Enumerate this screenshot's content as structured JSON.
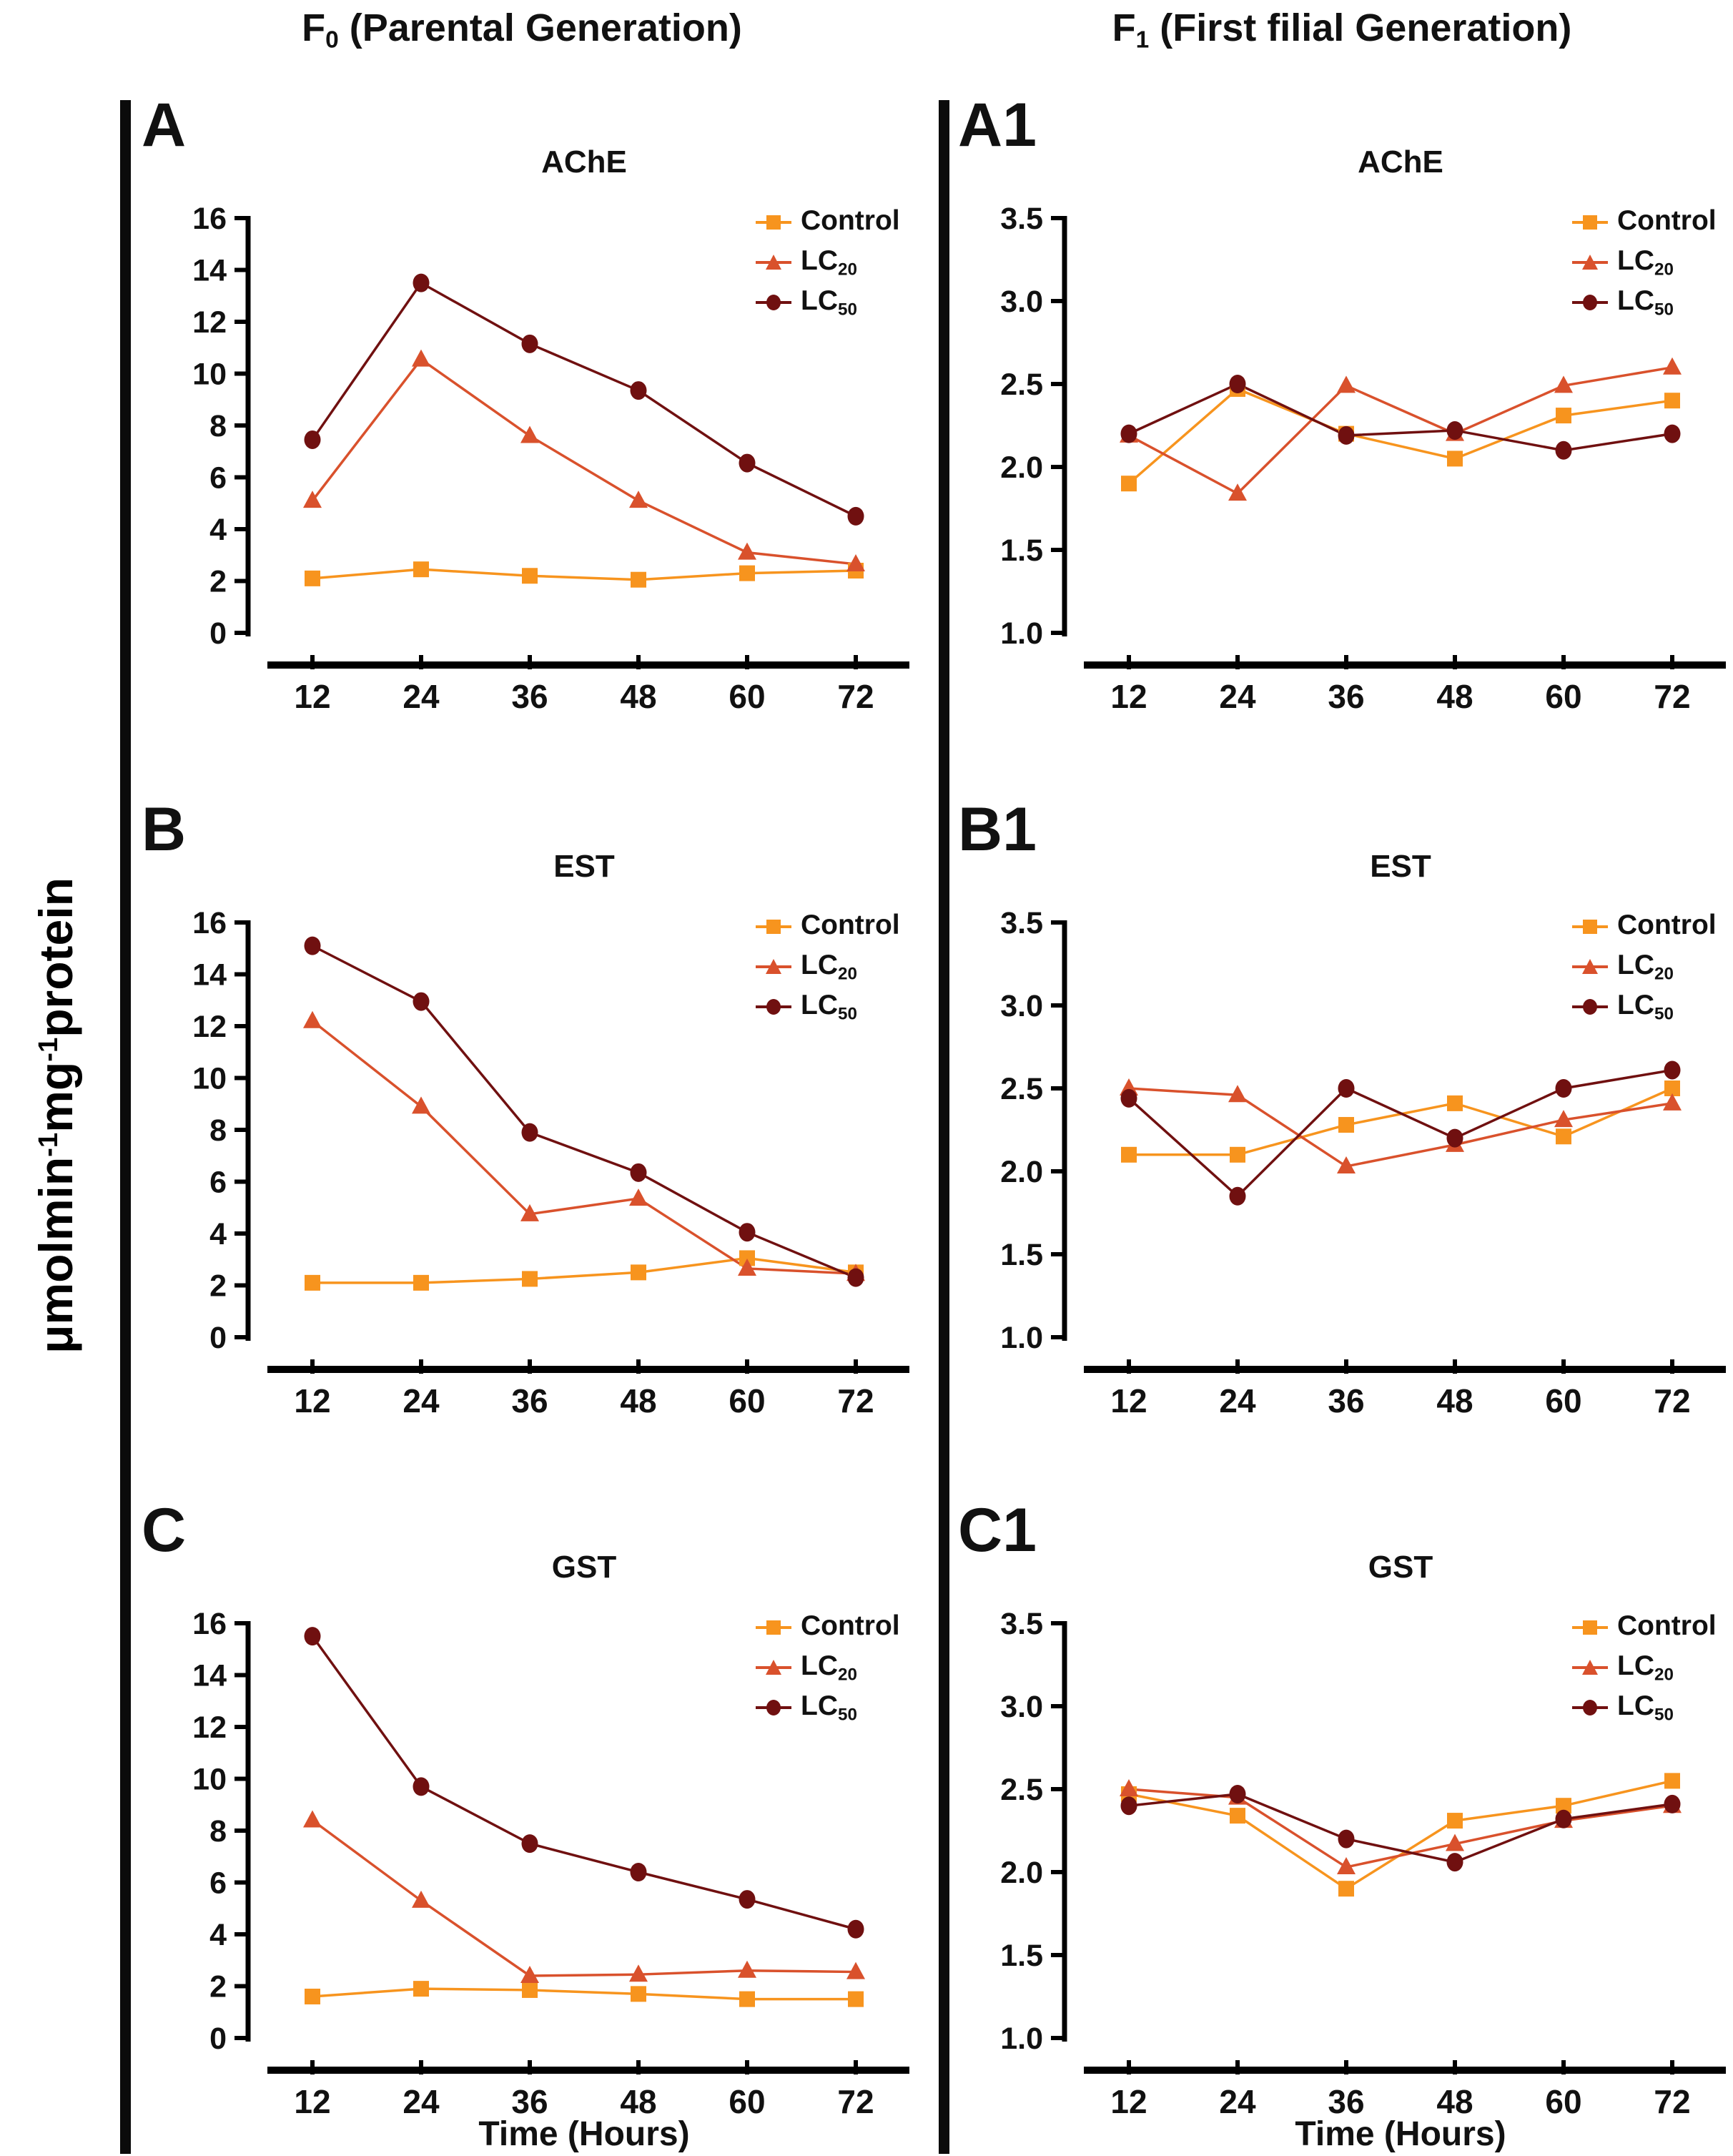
{
  "headers": {
    "left": {
      "prefix": "F",
      "sub": "0",
      "rest": " (Parental Generation)"
    },
    "right": {
      "prefix": "F",
      "sub": "1",
      "rest": " (First filial Generation)"
    }
  },
  "y_axis_label": {
    "p1": "μmolmin",
    "s1": "-1",
    "p2": "mg",
    "s2": "-1",
    "p3": "protein"
  },
  "x_axis_label": "Time (Hours)",
  "legend": {
    "entries": [
      {
        "key": "control",
        "label": "Control",
        "sub": ""
      },
      {
        "key": "lc20",
        "label": "LC",
        "sub": "20"
      },
      {
        "key": "lc50",
        "label": "LC",
        "sub": "50"
      }
    ]
  },
  "colors": {
    "control": "#F7941E",
    "lc20": "#D9512C",
    "lc50": "#701010",
    "axis": "#000000"
  },
  "panels": [
    {
      "label": "A",
      "title": "AChE"
    },
    {
      "label": "A1",
      "title": "AChE"
    },
    {
      "label": "B",
      "title": "EST"
    },
    {
      "label": "B1",
      "title": "EST"
    },
    {
      "label": "C",
      "title": "GST"
    },
    {
      "label": "C1",
      "title": "GST"
    }
  ],
  "chart_data": [
    {
      "panel": "A",
      "type": "line",
      "title": "AChE",
      "generation": "F0",
      "x": [
        "12",
        "24",
        "36",
        "48",
        "60",
        "72"
      ],
      "xlabel": "Time (Hours)",
      "ylabel": "μmolmin-1mg-1protein",
      "ylim": [
        0,
        16
      ],
      "yticks": [
        "0",
        "2",
        "4",
        "6",
        "8",
        "10",
        "12",
        "14",
        "16"
      ],
      "grid": false,
      "legend_position": "top-right",
      "series": [
        {
          "name": "Control",
          "key": "control",
          "marker": "square",
          "values": [
            2.1,
            2.45,
            2.2,
            2.05,
            2.3,
            2.4
          ]
        },
        {
          "name": "LC20",
          "key": "lc20",
          "marker": "triangle",
          "values": [
            5.1,
            10.55,
            7.6,
            5.1,
            3.1,
            2.65
          ]
        },
        {
          "name": "LC50",
          "key": "lc50",
          "marker": "circle",
          "values": [
            7.45,
            13.5,
            11.15,
            9.35,
            6.55,
            4.5
          ]
        }
      ]
    },
    {
      "panel": "A1",
      "type": "line",
      "title": "AChE",
      "generation": "F1",
      "x": [
        "12",
        "24",
        "36",
        "48",
        "60",
        "72"
      ],
      "xlabel": "Time (Hours)",
      "ylabel": "μmolmin-1mg-1protein",
      "ylim": [
        1.0,
        3.5
      ],
      "yticks": [
        "1.0",
        "1.5",
        "2.0",
        "2.5",
        "3.0",
        "3.5"
      ],
      "grid": false,
      "legend_position": "top-right",
      "series": [
        {
          "name": "Control",
          "key": "control",
          "marker": "square",
          "values": [
            1.9,
            2.47,
            2.2,
            2.05,
            2.31,
            2.4
          ]
        },
        {
          "name": "LC20",
          "key": "lc20",
          "marker": "triangle",
          "values": [
            2.19,
            1.84,
            2.49,
            2.2,
            2.49,
            2.6
          ]
        },
        {
          "name": "LC50",
          "key": "lc50",
          "marker": "circle",
          "values": [
            2.2,
            2.5,
            2.19,
            2.22,
            2.1,
            2.2
          ]
        }
      ]
    },
    {
      "panel": "B",
      "type": "line",
      "title": "EST",
      "generation": "F0",
      "x": [
        "12",
        "24",
        "36",
        "48",
        "60",
        "72"
      ],
      "xlabel": "Time (Hours)",
      "ylabel": "μmolmin-1mg-1protein",
      "ylim": [
        0,
        16
      ],
      "yticks": [
        "0",
        "2",
        "4",
        "6",
        "8",
        "10",
        "12",
        "14",
        "16"
      ],
      "grid": false,
      "legend_position": "top-right",
      "series": [
        {
          "name": "Control",
          "key": "control",
          "marker": "square",
          "values": [
            2.1,
            2.1,
            2.25,
            2.5,
            3.05,
            2.5
          ]
        },
        {
          "name": "LC20",
          "key": "lc20",
          "marker": "triangle",
          "values": [
            12.2,
            8.9,
            4.75,
            5.35,
            2.65,
            2.45
          ]
        },
        {
          "name": "LC50",
          "key": "lc50",
          "marker": "circle",
          "values": [
            15.1,
            12.95,
            7.9,
            6.35,
            4.05,
            2.3
          ]
        }
      ]
    },
    {
      "panel": "B1",
      "type": "line",
      "title": "EST",
      "generation": "F1",
      "x": [
        "12",
        "24",
        "36",
        "48",
        "60",
        "72"
      ],
      "xlabel": "Time (Hours)",
      "ylabel": "μmolmin-1mg-1protein",
      "ylim": [
        1.0,
        3.5
      ],
      "yticks": [
        "1.0",
        "1.5",
        "2.0",
        "2.5",
        "3.0",
        "3.5"
      ],
      "grid": false,
      "legend_position": "top-right",
      "series": [
        {
          "name": "Control",
          "key": "control",
          "marker": "square",
          "values": [
            2.1,
            2.1,
            2.28,
            2.41,
            2.21,
            2.5
          ]
        },
        {
          "name": "LC20",
          "key": "lc20",
          "marker": "triangle",
          "values": [
            2.5,
            2.46,
            2.03,
            2.16,
            2.31,
            2.41
          ]
        },
        {
          "name": "LC50",
          "key": "lc50",
          "marker": "circle",
          "values": [
            2.44,
            1.85,
            2.5,
            2.2,
            2.5,
            2.61
          ]
        }
      ]
    },
    {
      "panel": "C",
      "type": "line",
      "title": "GST",
      "generation": "F0",
      "x": [
        "12",
        "24",
        "36",
        "48",
        "60",
        "72"
      ],
      "xlabel": "Time (Hours)",
      "ylabel": "μmolmin-1mg-1protein",
      "ylim": [
        0,
        16
      ],
      "yticks": [
        "0",
        "2",
        "4",
        "6",
        "8",
        "10",
        "12",
        "14",
        "16"
      ],
      "grid": false,
      "legend_position": "top-right",
      "series": [
        {
          "name": "Control",
          "key": "control",
          "marker": "square",
          "values": [
            1.6,
            1.9,
            1.85,
            1.7,
            1.5,
            1.5
          ]
        },
        {
          "name": "LC20",
          "key": "lc20",
          "marker": "triangle",
          "values": [
            8.4,
            5.3,
            2.4,
            2.45,
            2.6,
            2.55
          ]
        },
        {
          "name": "LC50",
          "key": "lc50",
          "marker": "circle",
          "values": [
            15.5,
            9.7,
            7.5,
            6.4,
            5.35,
            4.2
          ]
        }
      ]
    },
    {
      "panel": "C1",
      "type": "line",
      "title": "GST",
      "generation": "F1",
      "x": [
        "12",
        "24",
        "36",
        "48",
        "60",
        "72"
      ],
      "xlabel": "Time (Hours)",
      "ylabel": "μmolmin-1mg-1protein",
      "ylim": [
        1.0,
        3.5
      ],
      "yticks": [
        "1.0",
        "1.5",
        "2.0",
        "2.5",
        "3.0",
        "3.5"
      ],
      "grid": false,
      "legend_position": "top-right",
      "series": [
        {
          "name": "Control",
          "key": "control",
          "marker": "square",
          "values": [
            2.47,
            2.34,
            1.9,
            2.31,
            2.4,
            2.55
          ]
        },
        {
          "name": "LC20",
          "key": "lc20",
          "marker": "triangle",
          "values": [
            2.5,
            2.45,
            2.03,
            2.17,
            2.31,
            2.4
          ]
        },
        {
          "name": "LC50",
          "key": "lc50",
          "marker": "circle",
          "values": [
            2.4,
            2.47,
            2.2,
            2.06,
            2.32,
            2.41
          ]
        }
      ]
    }
  ]
}
